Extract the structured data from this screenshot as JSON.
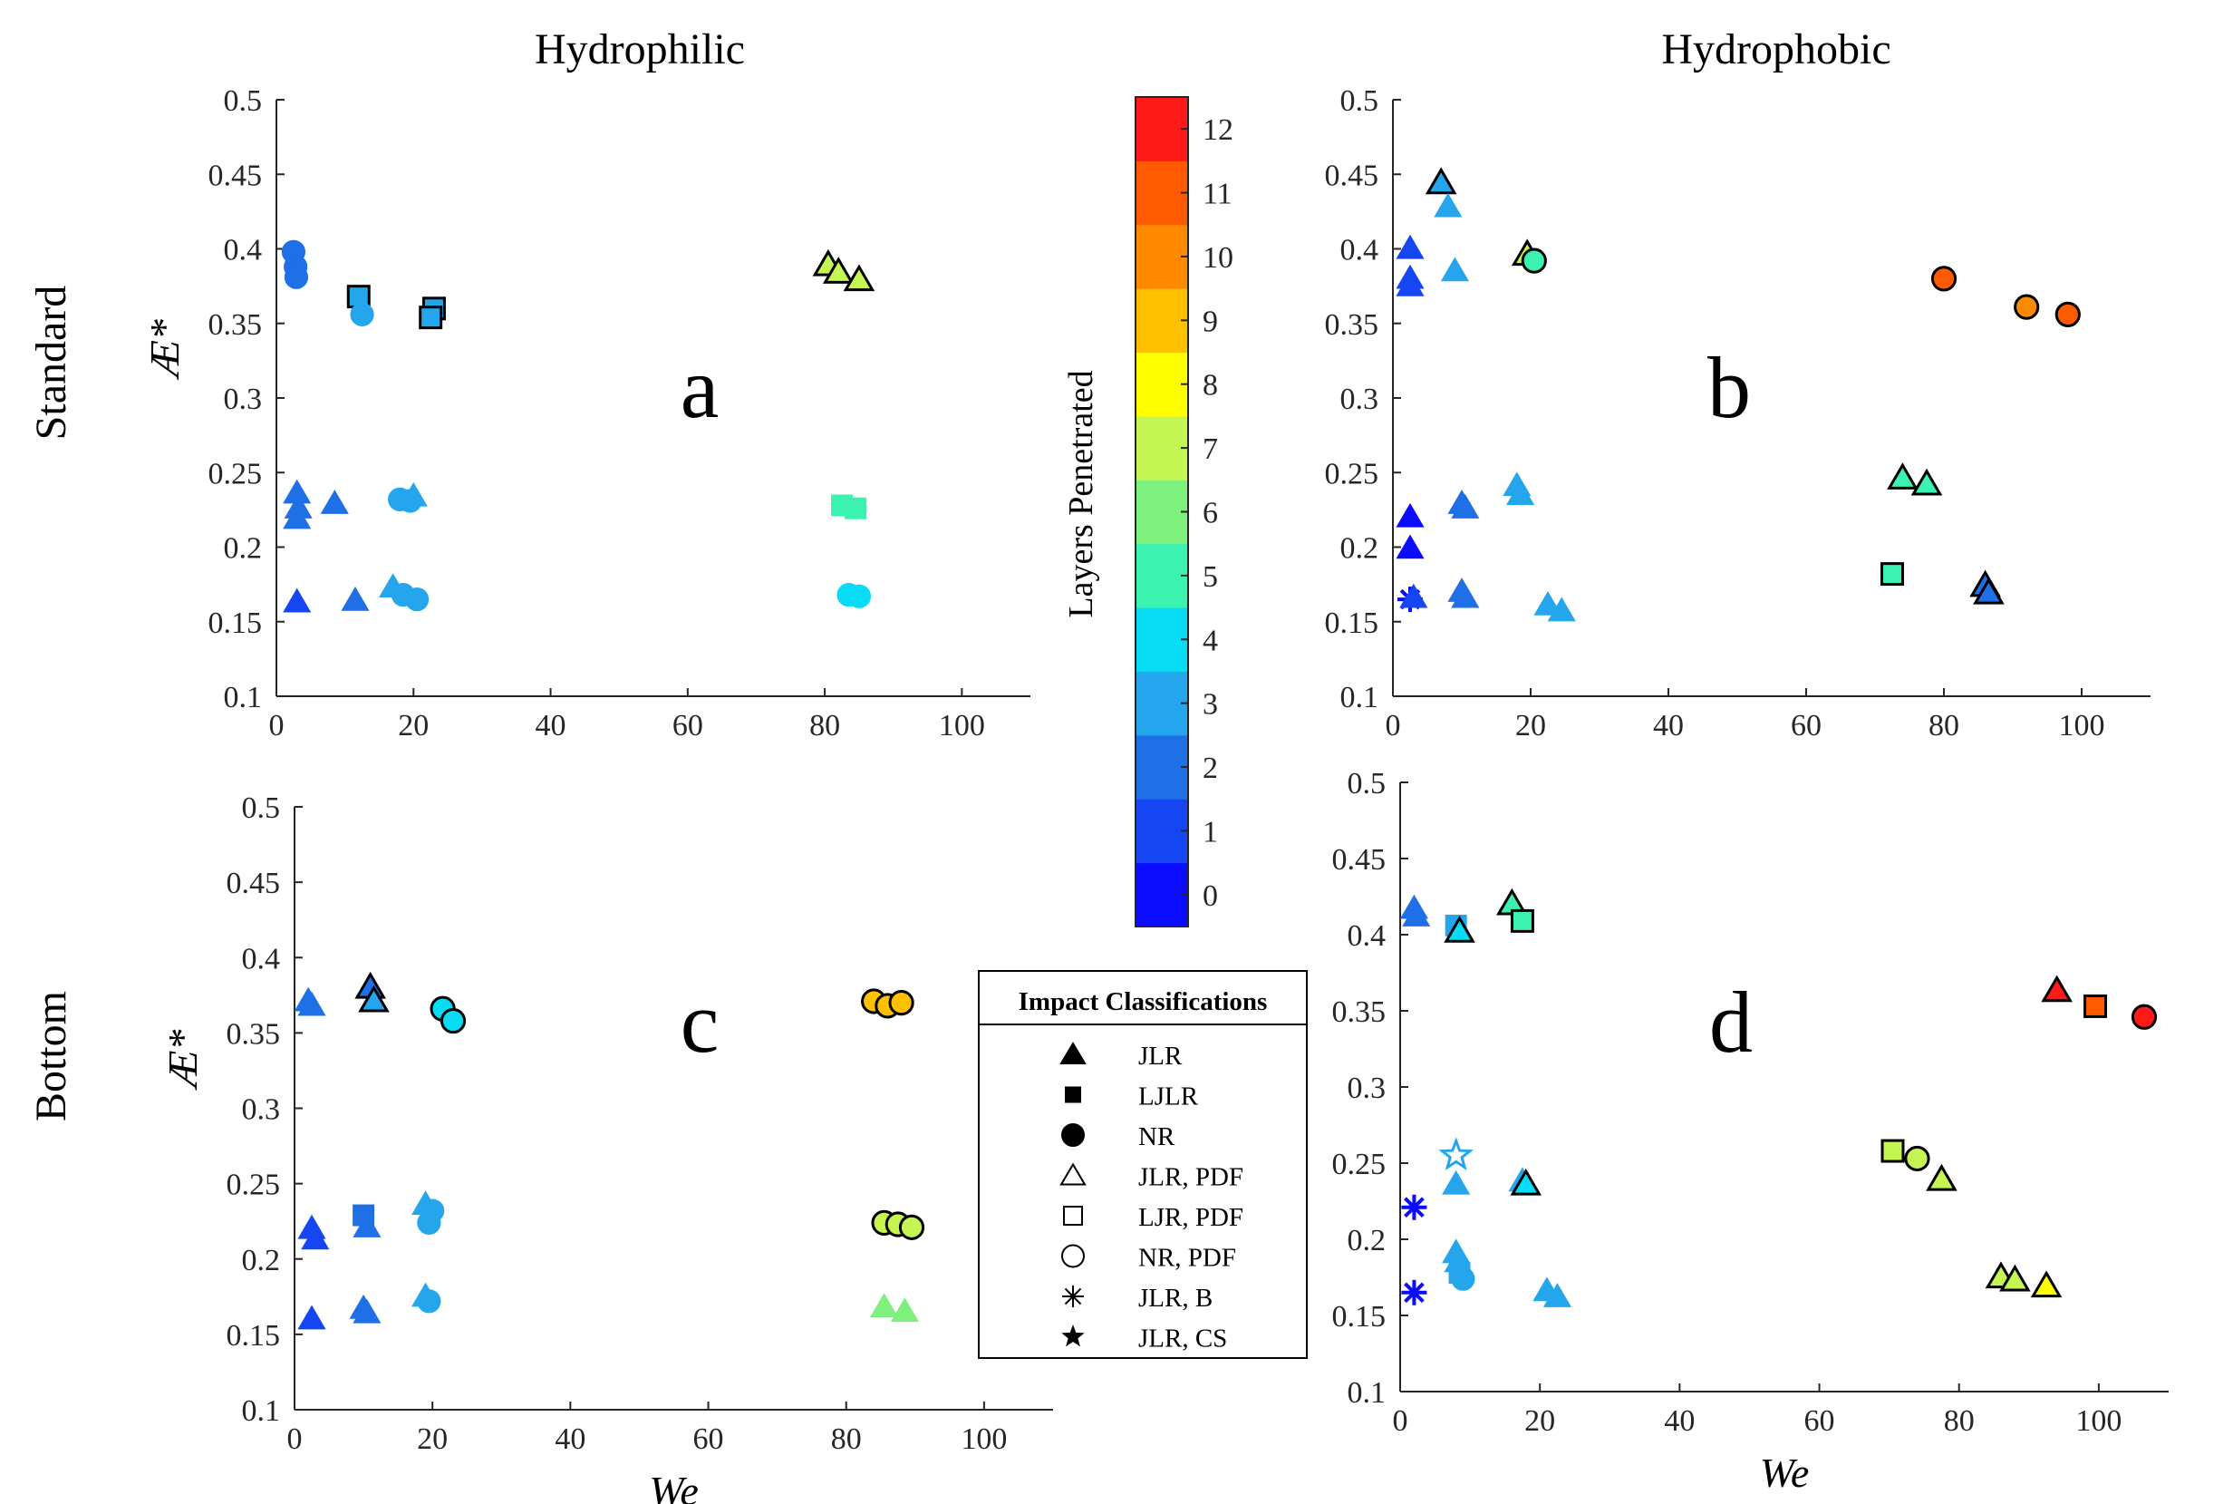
{
  "headers": {
    "col_left": "Hydrophilic",
    "col_right": "Hydrophobic",
    "row_top": "Standard",
    "row_bottom": "Bottom"
  },
  "colorbar": {
    "label": "Layers Penetrated",
    "ticks": [
      "0",
      "1",
      "2",
      "3",
      "4",
      "5",
      "6",
      "7",
      "8",
      "9",
      "10",
      "11",
      "12"
    ],
    "colors": [
      "#0a0bff",
      "#1546f2",
      "#1f6fe6",
      "#25a6ec",
      "#08dcf5",
      "#3cf2b0",
      "#7ef07e",
      "#c4f552",
      "#ffff00",
      "#ffc000",
      "#ff8a00",
      "#ff5a00",
      "#ff1a1a"
    ]
  },
  "legend": {
    "title": "Impact Classifications",
    "entries": [
      {
        "marker": "triangle",
        "filled": true,
        "label": "JLR"
      },
      {
        "marker": "square",
        "filled": true,
        "label": "LJLR"
      },
      {
        "marker": "circle",
        "filled": true,
        "label": "NR"
      },
      {
        "marker": "triangle",
        "filled": false,
        "label": "JLR, PDF"
      },
      {
        "marker": "square",
        "filled": false,
        "label": "LJR, PDF"
      },
      {
        "marker": "circle",
        "filled": false,
        "label": "NR, PDF"
      },
      {
        "marker": "asterisk",
        "filled": false,
        "label": "JLR, B"
      },
      {
        "marker": "star",
        "filled": true,
        "label": "JLR, CS"
      }
    ]
  },
  "chart_data": [
    {
      "type": "scatter",
      "panel": "a",
      "ylabel": "Æ*",
      "xlabel": "",
      "xlim": [
        0,
        110
      ],
      "ylim": [
        0.1,
        0.5
      ],
      "xticks": [
        0,
        20,
        40,
        60,
        80,
        100
      ],
      "yticks": [
        0.1,
        0.15,
        0.2,
        0.25,
        0.3,
        0.35,
        0.4,
        0.45,
        0.5
      ],
      "points": [
        {
          "x": 2.5,
          "y": 0.398,
          "m": "o",
          "l": 2
        },
        {
          "x": 2.8,
          "y": 0.388,
          "m": "o",
          "l": 2
        },
        {
          "x": 2.9,
          "y": 0.381,
          "m": "o",
          "l": 2
        },
        {
          "x": 12,
          "y": 0.368,
          "m": "s",
          "l": 3,
          "e": 1
        },
        {
          "x": 12.5,
          "y": 0.356,
          "m": "o",
          "l": 3
        },
        {
          "x": 23,
          "y": 0.36,
          "m": "s",
          "l": 3,
          "e": 1
        },
        {
          "x": 22.5,
          "y": 0.354,
          "m": "s",
          "l": 3,
          "e": 1
        },
        {
          "x": 3,
          "y": 0.236,
          "m": "t",
          "l": 2
        },
        {
          "x": 3.2,
          "y": 0.226,
          "m": "t",
          "l": 2
        },
        {
          "x": 3,
          "y": 0.219,
          "m": "t",
          "l": 2
        },
        {
          "x": 8.5,
          "y": 0.229,
          "m": "t",
          "l": 2
        },
        {
          "x": 18,
          "y": 0.232,
          "m": "o",
          "l": 3
        },
        {
          "x": 19.5,
          "y": 0.231,
          "m": "o",
          "l": 3
        },
        {
          "x": 20,
          "y": 0.234,
          "m": "t",
          "l": 3
        },
        {
          "x": 3,
          "y": 0.163,
          "m": "t",
          "l": 1
        },
        {
          "x": 11.5,
          "y": 0.164,
          "m": "t",
          "l": 2
        },
        {
          "x": 17,
          "y": 0.173,
          "m": "t",
          "l": 3
        },
        {
          "x": 18.5,
          "y": 0.168,
          "m": "o",
          "l": 3
        },
        {
          "x": 20.5,
          "y": 0.165,
          "m": "o",
          "l": 3
        },
        {
          "x": 80.5,
          "y": 0.389,
          "m": "t",
          "l": 7,
          "e": 1
        },
        {
          "x": 82,
          "y": 0.384,
          "m": "t",
          "l": 7,
          "e": 1
        },
        {
          "x": 85,
          "y": 0.379,
          "m": "t",
          "l": 7,
          "e": 1
        },
        {
          "x": 82.5,
          "y": 0.228,
          "m": "s",
          "l": 5
        },
        {
          "x": 84.5,
          "y": 0.226,
          "m": "s",
          "l": 5
        },
        {
          "x": 83.5,
          "y": 0.168,
          "m": "o",
          "l": 4
        },
        {
          "x": 85,
          "y": 0.167,
          "m": "o",
          "l": 4
        }
      ]
    },
    {
      "type": "scatter",
      "panel": "b",
      "ylabel": "",
      "xlabel": "",
      "xlim": [
        0,
        110
      ],
      "ylim": [
        0.1,
        0.5
      ],
      "xticks": [
        0,
        20,
        40,
        60,
        80,
        100
      ],
      "yticks": [
        0.1,
        0.15,
        0.2,
        0.25,
        0.3,
        0.35,
        0.4,
        0.45,
        0.5
      ],
      "points": [
        {
          "x": 7,
          "y": 0.444,
          "m": "t",
          "l": 3,
          "e": 1
        },
        {
          "x": 8,
          "y": 0.428,
          "m": "t",
          "l": 3
        },
        {
          "x": 2.5,
          "y": 0.4,
          "m": "t",
          "l": 1
        },
        {
          "x": 2.5,
          "y": 0.38,
          "m": "t",
          "l": 1
        },
        {
          "x": 2.5,
          "y": 0.375,
          "m": "t",
          "l": 1
        },
        {
          "x": 9,
          "y": 0.385,
          "m": "t",
          "l": 3
        },
        {
          "x": 19.5,
          "y": 0.396,
          "m": "t",
          "l": 7,
          "e": 1
        },
        {
          "x": 20.5,
          "y": 0.392,
          "m": "o",
          "l": 5,
          "e": 1
        },
        {
          "x": 80,
          "y": 0.38,
          "m": "o",
          "l": 11,
          "e": 1
        },
        {
          "x": 92,
          "y": 0.361,
          "m": "o",
          "l": 10,
          "e": 1
        },
        {
          "x": 98,
          "y": 0.356,
          "m": "o",
          "l": 11,
          "e": 1
        },
        {
          "x": 2.5,
          "y": 0.22,
          "m": "t",
          "l": 0
        },
        {
          "x": 2.5,
          "y": 0.199,
          "m": "t",
          "l": 0
        },
        {
          "x": 10,
          "y": 0.229,
          "m": "t",
          "l": 2
        },
        {
          "x": 10.5,
          "y": 0.226,
          "m": "t",
          "l": 2
        },
        {
          "x": 18,
          "y": 0.241,
          "m": "t",
          "l": 3
        },
        {
          "x": 18.5,
          "y": 0.235,
          "m": "t",
          "l": 3
        },
        {
          "x": 74,
          "y": 0.246,
          "m": "t",
          "l": 5,
          "e": 1
        },
        {
          "x": 77.5,
          "y": 0.242,
          "m": "t",
          "l": 5,
          "e": 1
        },
        {
          "x": 2.5,
          "y": 0.165,
          "m": "a",
          "l": 0
        },
        {
          "x": 3,
          "y": 0.166,
          "m": "t",
          "l": 1
        },
        {
          "x": 10,
          "y": 0.17,
          "m": "t",
          "l": 2
        },
        {
          "x": 10.5,
          "y": 0.166,
          "m": "t",
          "l": 2
        },
        {
          "x": 22.5,
          "y": 0.161,
          "m": "t",
          "l": 3
        },
        {
          "x": 24.5,
          "y": 0.157,
          "m": "t",
          "l": 3
        },
        {
          "x": 72.5,
          "y": 0.182,
          "m": "s",
          "l": 5,
          "e": 1
        },
        {
          "x": 86,
          "y": 0.174,
          "m": "t",
          "l": 2,
          "e": 1
        },
        {
          "x": 86.5,
          "y": 0.169,
          "m": "t",
          "l": 2,
          "e": 1
        }
      ]
    },
    {
      "type": "scatter",
      "panel": "c",
      "ylabel": "Æ*",
      "xlabel": "We",
      "xlim": [
        0,
        110
      ],
      "ylim": [
        0.1,
        0.5
      ],
      "xticks": [
        0,
        20,
        40,
        60,
        80,
        100
      ],
      "yticks": [
        0.1,
        0.15,
        0.2,
        0.25,
        0.3,
        0.35,
        0.4,
        0.45,
        0.5
      ],
      "points": [
        {
          "x": 2,
          "y": 0.371,
          "m": "t",
          "l": 2
        },
        {
          "x": 2.5,
          "y": 0.368,
          "m": "t",
          "l": 2
        },
        {
          "x": 11,
          "y": 0.38,
          "m": "t",
          "l": 2,
          "e": 1
        },
        {
          "x": 11.5,
          "y": 0.371,
          "m": "t",
          "l": 3,
          "e": 1
        },
        {
          "x": 21.5,
          "y": 0.366,
          "m": "o",
          "l": 4,
          "e": 1
        },
        {
          "x": 23,
          "y": 0.358,
          "m": "o",
          "l": 4,
          "e": 1
        },
        {
          "x": 84,
          "y": 0.371,
          "m": "o",
          "l": 9,
          "e": 1
        },
        {
          "x": 86,
          "y": 0.368,
          "m": "o",
          "l": 9,
          "e": 1
        },
        {
          "x": 88,
          "y": 0.37,
          "m": "o",
          "l": 9,
          "e": 1
        },
        {
          "x": 2.5,
          "y": 0.22,
          "m": "t",
          "l": 1
        },
        {
          "x": 3,
          "y": 0.213,
          "m": "t",
          "l": 1
        },
        {
          "x": 10,
          "y": 0.229,
          "m": "s",
          "l": 2
        },
        {
          "x": 10.5,
          "y": 0.221,
          "m": "t",
          "l": 2
        },
        {
          "x": 19,
          "y": 0.236,
          "m": "t",
          "l": 3
        },
        {
          "x": 20,
          "y": 0.232,
          "m": "o",
          "l": 3
        },
        {
          "x": 19.5,
          "y": 0.224,
          "m": "o",
          "l": 3
        },
        {
          "x": 85.5,
          "y": 0.224,
          "m": "o",
          "l": 7,
          "e": 1
        },
        {
          "x": 87.5,
          "y": 0.223,
          "m": "o",
          "l": 7,
          "e": 1
        },
        {
          "x": 89.5,
          "y": 0.221,
          "m": "o",
          "l": 7,
          "e": 1
        },
        {
          "x": 2.5,
          "y": 0.16,
          "m": "t",
          "l": 1
        },
        {
          "x": 10,
          "y": 0.167,
          "m": "t",
          "l": 2
        },
        {
          "x": 10.5,
          "y": 0.164,
          "m": "t",
          "l": 2
        },
        {
          "x": 19,
          "y": 0.175,
          "m": "t",
          "l": 3
        },
        {
          "x": 19.5,
          "y": 0.172,
          "m": "o",
          "l": 3
        },
        {
          "x": 85.5,
          "y": 0.168,
          "m": "t",
          "l": 6
        },
        {
          "x": 88.5,
          "y": 0.165,
          "m": "t",
          "l": 6
        }
      ]
    },
    {
      "type": "scatter",
      "panel": "d",
      "ylabel": "",
      "xlabel": "We",
      "xlim": [
        0,
        110
      ],
      "ylim": [
        0.1,
        0.5
      ],
      "xticks": [
        0,
        20,
        40,
        60,
        80,
        100
      ],
      "yticks": [
        0.1,
        0.15,
        0.2,
        0.25,
        0.3,
        0.35,
        0.4,
        0.45,
        0.5
      ],
      "points": [
        {
          "x": 2,
          "y": 0.417,
          "m": "t",
          "l": 2
        },
        {
          "x": 2.3,
          "y": 0.412,
          "m": "t",
          "l": 2
        },
        {
          "x": 8,
          "y": 0.406,
          "m": "s",
          "l": 3
        },
        {
          "x": 8.5,
          "y": 0.402,
          "m": "t",
          "l": 4,
          "e": 1
        },
        {
          "x": 16,
          "y": 0.42,
          "m": "t",
          "l": 5,
          "e": 1
        },
        {
          "x": 17.5,
          "y": 0.409,
          "m": "s",
          "l": 5,
          "e": 1
        },
        {
          "x": 94,
          "y": 0.363,
          "m": "t",
          "l": 12,
          "e": 1
        },
        {
          "x": 99.5,
          "y": 0.353,
          "m": "s",
          "l": 11,
          "e": 1
        },
        {
          "x": 106.5,
          "y": 0.346,
          "m": "o",
          "l": 12,
          "e": 1
        },
        {
          "x": 8,
          "y": 0.255,
          "m": "p",
          "l": 3
        },
        {
          "x": 8,
          "y": 0.236,
          "m": "t",
          "l": 3
        },
        {
          "x": 17.5,
          "y": 0.238,
          "m": "t",
          "l": 3
        },
        {
          "x": 18,
          "y": 0.236,
          "m": "t",
          "l": 4,
          "e": 1
        },
        {
          "x": 2,
          "y": 0.221,
          "m": "a",
          "l": 0
        },
        {
          "x": 2,
          "y": 0.165,
          "m": "a",
          "l": 0
        },
        {
          "x": 70.5,
          "y": 0.258,
          "m": "s",
          "l": 7,
          "e": 1
        },
        {
          "x": 74,
          "y": 0.253,
          "m": "o",
          "l": 7,
          "e": 1
        },
        {
          "x": 77.5,
          "y": 0.239,
          "m": "t",
          "l": 7,
          "e": 1
        },
        {
          "x": 8,
          "y": 0.191,
          "m": "t",
          "l": 3
        },
        {
          "x": 8.3,
          "y": 0.185,
          "m": "t",
          "l": 3
        },
        {
          "x": 8.5,
          "y": 0.178,
          "m": "s",
          "l": 3
        },
        {
          "x": 9,
          "y": 0.174,
          "m": "o",
          "l": 3
        },
        {
          "x": 21,
          "y": 0.166,
          "m": "t",
          "l": 3
        },
        {
          "x": 22.5,
          "y": 0.162,
          "m": "t",
          "l": 3
        },
        {
          "x": 86,
          "y": 0.175,
          "m": "t",
          "l": 7,
          "e": 1
        },
        {
          "x": 88,
          "y": 0.173,
          "m": "t",
          "l": 7,
          "e": 1
        },
        {
          "x": 92.5,
          "y": 0.169,
          "m": "t",
          "l": 8,
          "e": 1
        }
      ]
    }
  ],
  "annotations": {
    "panel_letters": [
      "a",
      "b",
      "c",
      "d"
    ]
  }
}
